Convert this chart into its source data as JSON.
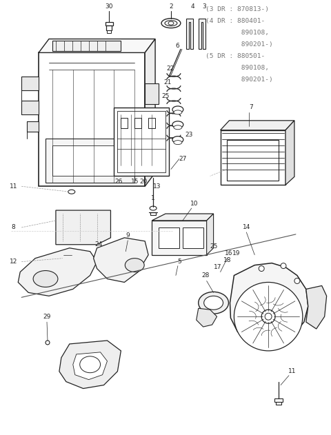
{
  "bg_color": "#ffffff",
  "line_color": "#222222",
  "text_color": "#222222",
  "gray_text_color": "#777777",
  "note_lines": [
    "(3 DR : 870813-)",
    "(4 DR : 880401-",
    "         890108,",
    "         890201-)",
    "(5 DR : 880501-",
    "         890108,",
    "         890201-)"
  ],
  "figsize": [
    4.8,
    6.31
  ],
  "dpi": 100
}
